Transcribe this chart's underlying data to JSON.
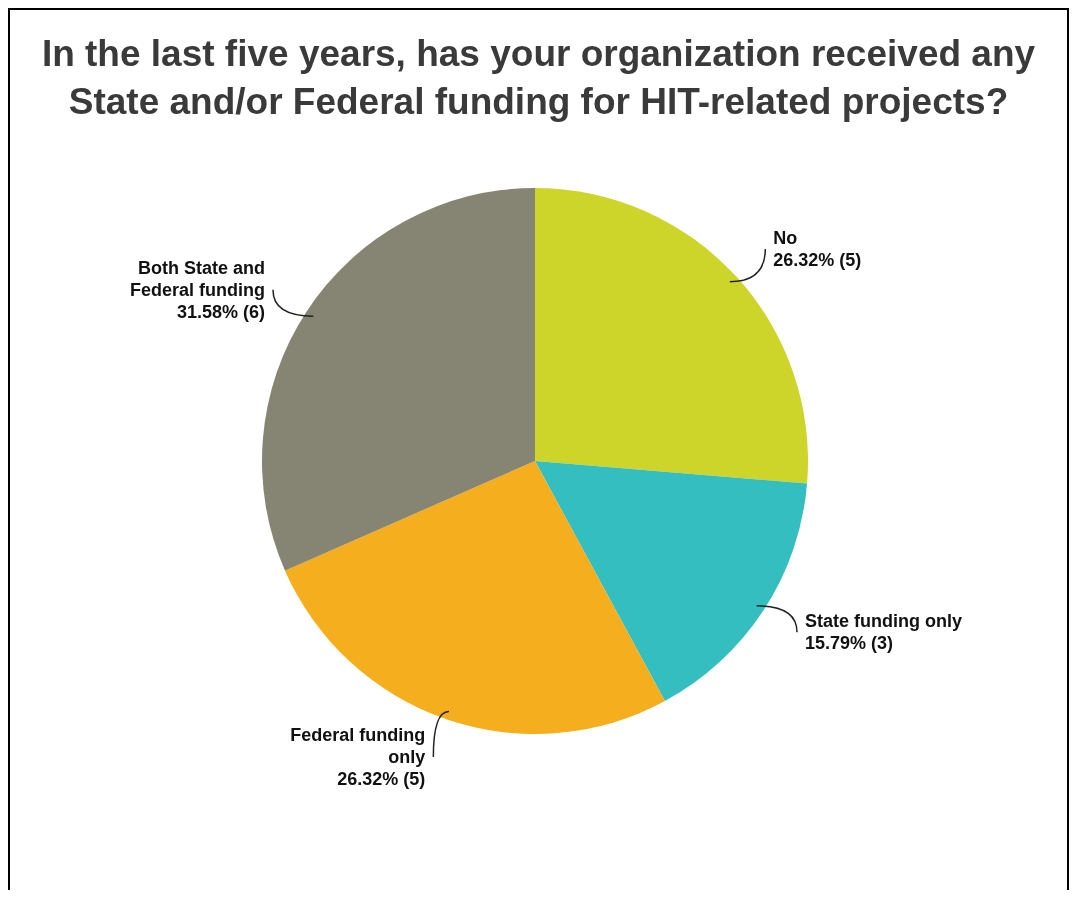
{
  "chart_data": {
    "type": "pie",
    "title": "In the last five years, has your organization received any State and/or Federal funding for HIT-related projects?",
    "categories": [
      "No",
      "State funding only",
      "Federal funding only",
      "Both State and Federal funding"
    ],
    "values": [
      26.32,
      15.79,
      26.32,
      31.58
    ],
    "value_labels": [
      "26.32% (5)",
      "15.79% (3)",
      "26.32% (5)",
      "31.58% (6)"
    ],
    "colors": [
      "#cdd52a",
      "#35bec0",
      "#f5ae1d",
      "#868573"
    ],
    "legend": false
  }
}
